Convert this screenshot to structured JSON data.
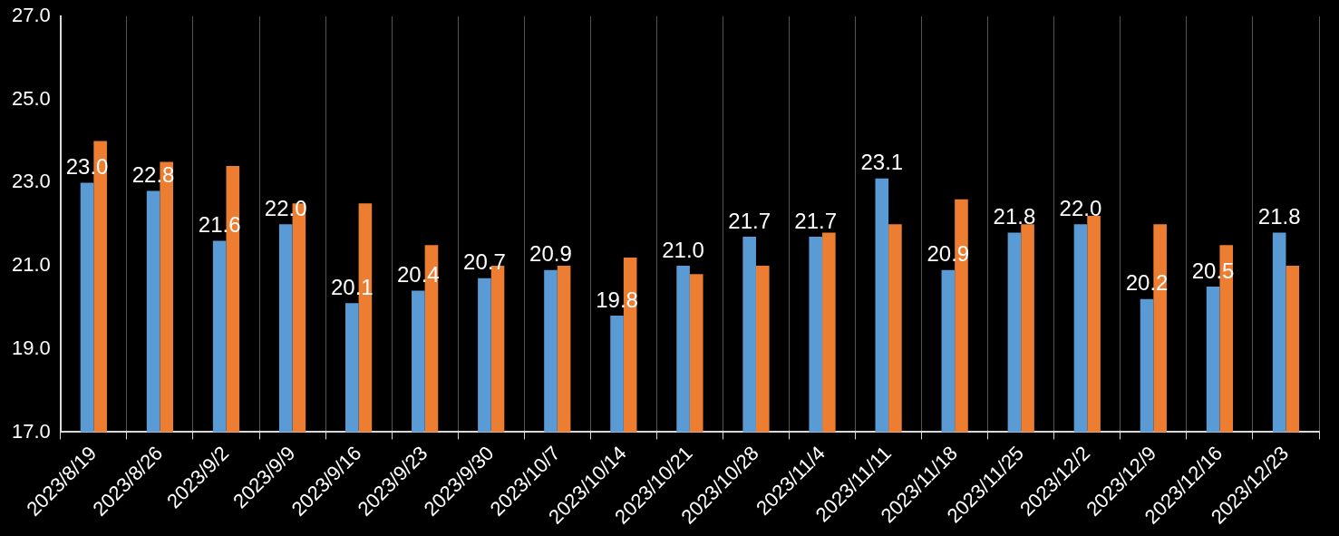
{
  "chart_data": {
    "type": "bar",
    "categories": [
      "2023/8/19",
      "2023/8/26",
      "2023/9/2",
      "2023/9/9",
      "2023/9/16",
      "2023/9/23",
      "2023/9/30",
      "2023/10/7",
      "2023/10/14",
      "2023/10/21",
      "2023/10/28",
      "2023/11/4",
      "2023/11/11",
      "2023/11/18",
      "2023/11/25",
      "2023/12/2",
      "2023/12/9",
      "2023/12/16",
      "2023/12/23"
    ],
    "series": [
      {
        "color": "#5b9bd5",
        "data_labels": true,
        "values": [
          23.0,
          22.8,
          21.6,
          22.0,
          20.1,
          20.4,
          20.7,
          20.9,
          19.8,
          21.0,
          21.7,
          21.7,
          23.1,
          20.9,
          21.8,
          22.0,
          20.2,
          20.5,
          21.8
        ],
        "value_labels": [
          "23.0",
          "22.8",
          "21.6",
          "22.0",
          "20.1",
          "20.4",
          "20.7",
          "20.9",
          "19.8",
          "21.0",
          "21.7",
          "21.7",
          "23.1",
          "20.9",
          "21.8",
          "22.0",
          "20.2",
          "20.5",
          "21.8"
        ]
      },
      {
        "color": "#ed7d31",
        "data_labels": false,
        "values": [
          24.0,
          23.5,
          23.4,
          22.5,
          22.5,
          21.5,
          21.0,
          21.0,
          21.2,
          20.8,
          21.0,
          21.8,
          22.0,
          22.6,
          22.0,
          22.2,
          22.0,
          21.5,
          21.0
        ]
      }
    ],
    "ylim": [
      17,
      27
    ],
    "yticks": [
      {
        "value": 17,
        "label": "17.0"
      },
      {
        "value": 19,
        "label": "19.0"
      },
      {
        "value": 21,
        "label": "21.0"
      },
      {
        "value": 23,
        "label": "23.0"
      },
      {
        "value": 25,
        "label": "25.0"
      },
      {
        "value": 27,
        "label": "27.0"
      }
    ],
    "grid": "x"
  }
}
